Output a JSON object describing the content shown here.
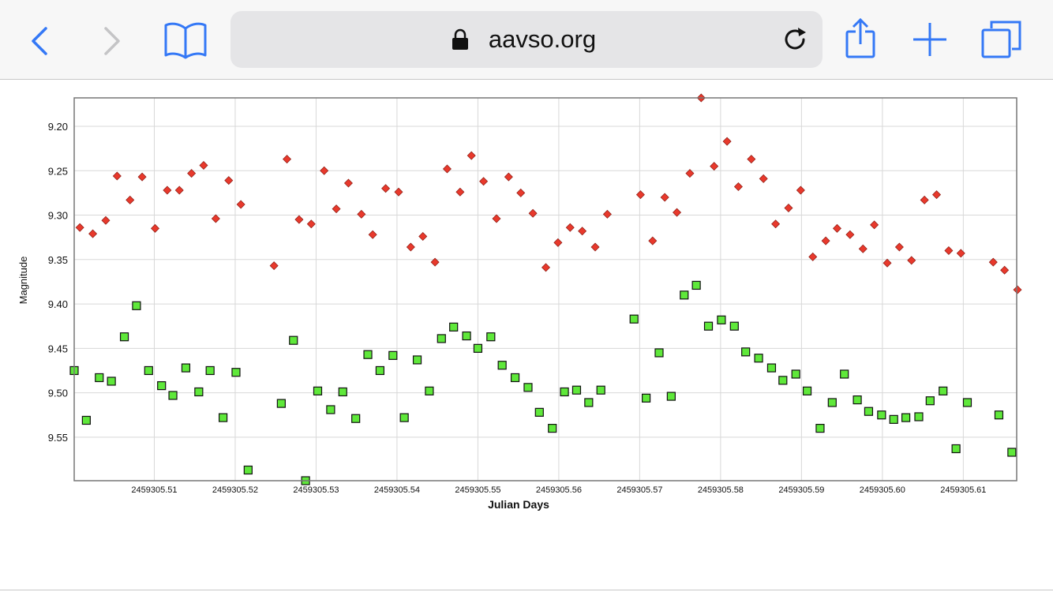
{
  "browser": {
    "url": "aavso.org",
    "icons": [
      "back-chevron-icon",
      "forward-chevron-icon",
      "bookmarks-book-icon",
      "lock-icon",
      "reload-icon",
      "share-icon",
      "new-tab-plus-icon",
      "tabs-icon"
    ],
    "accent_color": "#3478f6"
  },
  "chart_data": {
    "type": "scatter",
    "title": "",
    "xlabel": "Julian Days",
    "ylabel": "Magnitude",
    "jd_base": 2459305,
    "xlim": [
      2459305.5001,
      2459305.6166
    ],
    "ylim": [
      9.599,
      9.168
    ],
    "y_inverted": true,
    "grid": true,
    "xticks": [
      {
        "value": 0.51,
        "label": "2459305.51"
      },
      {
        "value": 0.52,
        "label": "2459305.52"
      },
      {
        "value": 0.53,
        "label": "2459305.53"
      },
      {
        "value": 0.54,
        "label": "2459305.54"
      },
      {
        "value": 0.55,
        "label": "2459305.55"
      },
      {
        "value": 0.56,
        "label": "2459305.56"
      },
      {
        "value": 0.57,
        "label": "2459305.57"
      },
      {
        "value": 0.58,
        "label": "2459305.58"
      },
      {
        "value": 0.59,
        "label": "2459305.59"
      },
      {
        "value": 0.6,
        "label": "2459305.60"
      },
      {
        "value": 0.61,
        "label": "2459305.61"
      }
    ],
    "yticks": [
      {
        "value": 9.2,
        "label": "9.20"
      },
      {
        "value": 9.25,
        "label": "9.25"
      },
      {
        "value": 9.3,
        "label": "9.30"
      },
      {
        "value": 9.35,
        "label": "9.35"
      },
      {
        "value": 9.4,
        "label": "9.40"
      },
      {
        "value": 9.45,
        "label": "9.45"
      },
      {
        "value": 9.5,
        "label": "9.50"
      },
      {
        "value": 9.55,
        "label": "9.55"
      }
    ],
    "series": [
      {
        "name": "red-diamond-series",
        "marker": "diamond",
        "color": "#e8392c",
        "points_jd_fraction_mag": [
          [
            0.5008,
            9.314
          ],
          [
            0.5024,
            9.321
          ],
          [
            0.504,
            9.306
          ],
          [
            0.5054,
            9.256
          ],
          [
            0.507,
            9.283
          ],
          [
            0.5085,
            9.257
          ],
          [
            0.5101,
            9.315
          ],
          [
            0.5116,
            9.272
          ],
          [
            0.5131,
            9.272
          ],
          [
            0.5146,
            9.253
          ],
          [
            0.5161,
            9.244
          ],
          [
            0.5176,
            9.304
          ],
          [
            0.5192,
            9.261
          ],
          [
            0.5207,
            9.288
          ],
          [
            0.5248,
            9.357
          ],
          [
            0.5264,
            9.237
          ],
          [
            0.5279,
            9.305
          ],
          [
            0.5294,
            9.31
          ],
          [
            0.531,
            9.25
          ],
          [
            0.5325,
            9.293
          ],
          [
            0.534,
            9.264
          ],
          [
            0.5356,
            9.299
          ],
          [
            0.537,
            9.322
          ],
          [
            0.5386,
            9.27
          ],
          [
            0.5402,
            9.274
          ],
          [
            0.5417,
            9.336
          ],
          [
            0.5432,
            9.324
          ],
          [
            0.5447,
            9.353
          ],
          [
            0.5462,
            9.248
          ],
          [
            0.5478,
            9.274
          ],
          [
            0.5492,
            9.233
          ],
          [
            0.5507,
            9.262
          ],
          [
            0.5523,
            9.304
          ],
          [
            0.5538,
            9.257
          ],
          [
            0.5553,
            9.275
          ],
          [
            0.5568,
            9.298
          ],
          [
            0.5584,
            9.359
          ],
          [
            0.5599,
            9.331
          ],
          [
            0.5614,
            9.314
          ],
          [
            0.5629,
            9.318
          ],
          [
            0.5645,
            9.336
          ],
          [
            0.566,
            9.299
          ],
          [
            0.5701,
            9.277
          ],
          [
            0.5716,
            9.329
          ],
          [
            0.5731,
            9.28
          ],
          [
            0.5746,
            9.297
          ],
          [
            0.5762,
            9.253
          ],
          [
            0.5776,
            9.168
          ],
          [
            0.5792,
            9.245
          ],
          [
            0.5808,
            9.217
          ],
          [
            0.5822,
            9.268
          ],
          [
            0.5838,
            9.237
          ],
          [
            0.5853,
            9.259
          ],
          [
            0.5868,
            9.31
          ],
          [
            0.5884,
            9.292
          ],
          [
            0.5899,
            9.272
          ],
          [
            0.5914,
            9.347
          ],
          [
            0.593,
            9.329
          ],
          [
            0.5944,
            9.315
          ],
          [
            0.596,
            9.322
          ],
          [
            0.5976,
            9.338
          ],
          [
            0.599,
            9.311
          ],
          [
            0.6006,
            9.354
          ],
          [
            0.6021,
            9.336
          ],
          [
            0.6036,
            9.351
          ],
          [
            0.6052,
            9.283
          ],
          [
            0.6067,
            9.277
          ],
          [
            0.6082,
            9.34
          ],
          [
            0.6097,
            9.343
          ],
          [
            0.6137,
            9.353
          ],
          [
            0.6151,
            9.362
          ],
          [
            0.6167,
            9.384
          ]
        ]
      },
      {
        "name": "green-square-series",
        "marker": "square",
        "color": "#5fe83a",
        "points_jd_fraction_mag": [
          [
            0.5001,
            9.475
          ],
          [
            0.5016,
            9.531
          ],
          [
            0.5032,
            9.483
          ],
          [
            0.5047,
            9.487
          ],
          [
            0.5063,
            9.437
          ],
          [
            0.5078,
            9.402
          ],
          [
            0.5093,
            9.475
          ],
          [
            0.5109,
            9.492
          ],
          [
            0.5123,
            9.503
          ],
          [
            0.5139,
            9.472
          ],
          [
            0.5155,
            9.499
          ],
          [
            0.5169,
            9.475
          ],
          [
            0.5185,
            9.528
          ],
          [
            0.5201,
            9.477
          ],
          [
            0.5216,
            9.587
          ],
          [
            0.5257,
            9.512
          ],
          [
            0.5272,
            9.441
          ],
          [
            0.5287,
            9.599
          ],
          [
            0.5302,
            9.498
          ],
          [
            0.5318,
            9.519
          ],
          [
            0.5333,
            9.499
          ],
          [
            0.5349,
            9.529
          ],
          [
            0.5364,
            9.457
          ],
          [
            0.5379,
            9.475
          ],
          [
            0.5395,
            9.458
          ],
          [
            0.5409,
            9.528
          ],
          [
            0.5425,
            9.463
          ],
          [
            0.544,
            9.498
          ],
          [
            0.5455,
            9.439
          ],
          [
            0.547,
            9.426
          ],
          [
            0.5486,
            9.436
          ],
          [
            0.55,
            9.45
          ],
          [
            0.5516,
            9.437
          ],
          [
            0.553,
            9.469
          ],
          [
            0.5546,
            9.483
          ],
          [
            0.5562,
            9.494
          ],
          [
            0.5576,
            9.522
          ],
          [
            0.5592,
            9.54
          ],
          [
            0.5607,
            9.499
          ],
          [
            0.5622,
            9.497
          ],
          [
            0.5637,
            9.511
          ],
          [
            0.5652,
            9.497
          ],
          [
            0.5693,
            9.417
          ],
          [
            0.5708,
            9.506
          ],
          [
            0.5724,
            9.455
          ],
          [
            0.5739,
            9.504
          ],
          [
            0.5755,
            9.39
          ],
          [
            0.577,
            9.379
          ],
          [
            0.5785,
            9.425
          ],
          [
            0.5801,
            9.418
          ],
          [
            0.5817,
            9.425
          ],
          [
            0.5831,
            9.454
          ],
          [
            0.5847,
            9.461
          ],
          [
            0.5863,
            9.472
          ],
          [
            0.5877,
            9.486
          ],
          [
            0.5893,
            9.479
          ],
          [
            0.5907,
            9.498
          ],
          [
            0.5923,
            9.54
          ],
          [
            0.5938,
            9.511
          ],
          [
            0.5953,
            9.479
          ],
          [
            0.5969,
            9.508
          ],
          [
            0.5983,
            9.521
          ],
          [
            0.5999,
            9.525
          ],
          [
            0.6014,
            9.53
          ],
          [
            0.6029,
            9.528
          ],
          [
            0.6045,
            9.527
          ],
          [
            0.6059,
            9.509
          ],
          [
            0.6075,
            9.498
          ],
          [
            0.6091,
            9.563
          ],
          [
            0.6105,
            9.511
          ],
          [
            0.6144,
            9.525
          ],
          [
            0.616,
            9.567
          ]
        ]
      }
    ]
  }
}
